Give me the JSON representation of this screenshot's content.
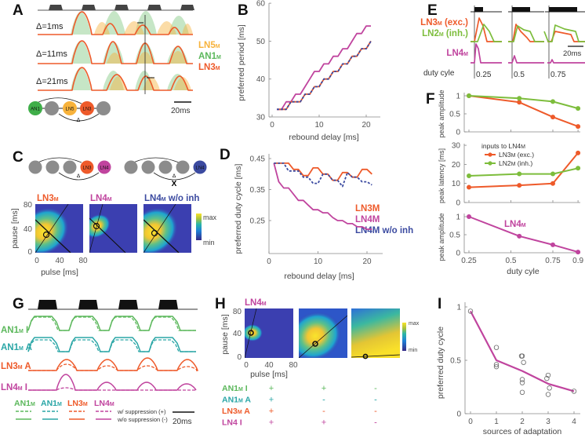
{
  "panel_labels": {
    "A": "A",
    "B": "B",
    "C": "C",
    "D": "D",
    "E": "E",
    "F": "F",
    "G": "G",
    "H": "H",
    "I": "I"
  },
  "colors": {
    "LN5": "#f7b23b",
    "AN1": "#5cb85c",
    "LN3": "#ee5a2a",
    "LN4": "#c0449e",
    "LN4_wo_inh": "#3b4aa0",
    "LN2": "#7dbd3c",
    "AN1_A": "#2aa6a6",
    "gray": "#8c8c8c",
    "stimulus": "#333333"
  },
  "panel_a": {
    "deltas": [
      "Δ=1ms",
      "Δ=11ms",
      "Δ=21ms"
    ],
    "legend": [
      {
        "main": "LN5",
        "sub": "M"
      },
      {
        "main": "AN1",
        "sub": "M"
      },
      {
        "main": "LN3",
        "sub": "M"
      }
    ],
    "scale_bar": "20ms",
    "network": {
      "nodes": [
        "AN1",
        "LN5",
        "LN3"
      ],
      "delta": "Δ"
    }
  },
  "panel_c": {
    "network_left": [
      "LN3",
      "LN4"
    ],
    "network_right": [
      "LN4"
    ],
    "delta": "Δ",
    "cross": "X",
    "titles": [
      {
        "main": "LN3",
        "sub": "M",
        "extra": ""
      },
      {
        "main": "LN4",
        "sub": "M",
        "extra": ""
      },
      {
        "main": "LN4",
        "sub": "M",
        "extra": " w/o inh"
      }
    ],
    "colorbar": {
      "max": "max",
      "min": "min"
    },
    "xticks": [
      "0",
      "40",
      "80"
    ],
    "yticks": [
      "80",
      "40",
      "0"
    ],
    "xlabel": "pulse [ms]",
    "ylabel": "pause [ms]"
  },
  "panel_e": {
    "labels": [
      {
        "main": "LN3",
        "sub": "M",
        "extra": " (exc.)"
      },
      {
        "main": "LN2",
        "sub": "M",
        "extra": " (inh.)"
      },
      {
        "main": "LN4",
        "sub": "M",
        "extra": ""
      }
    ],
    "duty_label": "duty cyle",
    "duty_values": [
      "0.25",
      "0.5",
      "0.75"
    ],
    "scale_bar": "20ms"
  },
  "panel_f": {
    "legend_title": {
      "main": "inputs to LN4",
      "sub": "M"
    },
    "legend": [
      {
        "main": "LN3",
        "sub": "M",
        "extra": " (exc.)"
      },
      {
        "main": "LN2",
        "sub": "M",
        "extra": " (inh.)"
      }
    ],
    "ln4_label": {
      "main": "LN4",
      "sub": "M"
    }
  },
  "panel_g": {
    "traces": [
      {
        "main": "AN1",
        "sub": "M",
        "extra": " I"
      },
      {
        "main": "AN1",
        "sub": "M",
        "extra": " A"
      },
      {
        "main": "LN3",
        "sub": "M",
        "extra": " A"
      },
      {
        "main": "LN4",
        "sub": "M",
        "extra": " I"
      }
    ],
    "legend_cols": [
      {
        "main": "AN1",
        "sub": "M"
      },
      {
        "main": "AN1",
        "sub": "M"
      },
      {
        "main": "LN3",
        "sub": "M"
      },
      {
        "main": "LN4",
        "sub": "M"
      }
    ],
    "legend_dashed": "w/ suppression (+)",
    "legend_solid": "w/o suppression (-)",
    "scale_bar": "20ms"
  },
  "panel_h": {
    "title": {
      "main": "LN4",
      "sub": "M"
    },
    "xticks": [
      "0",
      "40",
      "80"
    ],
    "yticks": [
      "80",
      "40",
      "0"
    ],
    "xlabel": "pulse [ms]",
    "ylabel": "pause [ms]",
    "colorbar": {
      "max": "max",
      "min": "min"
    },
    "rows": [
      {
        "main": "AN1",
        "sub": "M",
        "extra": " I",
        "signs": [
          "+",
          "+",
          "-"
        ]
      },
      {
        "main": "AN1",
        "sub": "M",
        "extra": " A",
        "signs": [
          "+",
          "-",
          "-"
        ]
      },
      {
        "main": "LN3",
        "sub": "M",
        "extra": " A",
        "signs": [
          "+",
          "-",
          "-"
        ]
      },
      {
        "main": "LN4",
        "sub": "",
        "extra": "  I",
        "signs": [
          "+",
          "+",
          "-"
        ]
      }
    ]
  },
  "chart_data": [
    {
      "panel": "B",
      "type": "line",
      "xlabel": "rebound delay [ms]",
      "ylabel": "preferred period [ms]",
      "xlim": [
        0,
        23
      ],
      "ylim": [
        30,
        60
      ],
      "xticks": [
        0,
        10,
        20
      ],
      "yticks": [
        30,
        40,
        50,
        60
      ],
      "x": [
        1,
        2,
        3,
        4,
        5,
        6,
        7,
        8,
        9,
        10,
        11,
        12,
        13,
        14,
        15,
        16,
        17,
        18,
        19,
        20,
        21
      ],
      "series": [
        {
          "color": "#ee5a2a",
          "values": [
            32,
            32,
            32,
            34,
            34,
            34,
            36,
            36,
            38,
            38,
            40,
            40,
            42,
            42,
            44,
            44,
            46,
            46,
            48,
            48,
            50
          ]
        },
        {
          "color": "#3b4aa0",
          "dashed": true,
          "values": [
            32,
            32,
            32,
            34,
            34,
            34,
            36,
            36,
            38,
            38,
            40,
            40,
            42,
            42,
            44,
            44,
            46,
            46,
            48,
            48,
            50
          ]
        },
        {
          "color": "#c0449e",
          "values": [
            32,
            32,
            34,
            34,
            36,
            36,
            38,
            40,
            42,
            42,
            44,
            44,
            46,
            46,
            48,
            48,
            50,
            52,
            52,
            54,
            54
          ]
        }
      ]
    },
    {
      "panel": "D",
      "type": "line",
      "xlabel": "rebound delay [ms]",
      "ylabel": "preferred duty cycle [ms]",
      "xlim": [
        0,
        23
      ],
      "ylim": [
        0.2,
        0.45
      ],
      "xticks": [
        0,
        10,
        20
      ],
      "yticks": [
        0.25,
        0.35,
        0.45
      ],
      "legend": "right",
      "x": [
        1,
        2,
        3,
        4,
        5,
        6,
        7,
        8,
        9,
        10,
        11,
        12,
        13,
        14,
        15,
        16,
        17,
        18,
        19,
        20,
        21
      ],
      "series": [
        {
          "name": "LN3M",
          "color": "#ee5a2a",
          "values": [
            0.435,
            0.435,
            0.435,
            0.435,
            0.415,
            0.415,
            0.395,
            0.395,
            0.42,
            0.42,
            0.4,
            0.4,
            0.38,
            0.38,
            0.405,
            0.405,
            0.39,
            0.39,
            0.415,
            0.415,
            0.4
          ]
        },
        {
          "name": "LN4M",
          "color": "#c0449e",
          "values": [
            0.435,
            0.375,
            0.355,
            0.355,
            0.335,
            0.315,
            0.315,
            0.3,
            0.285,
            0.285,
            0.275,
            0.275,
            0.26,
            0.25,
            0.25,
            0.24,
            0.24,
            0.23,
            0.23,
            0.222,
            0.222
          ]
        },
        {
          "name": "LN4M w/o inh",
          "color": "#3b4aa0",
          "dashed": true,
          "values": [
            0.435,
            0.435,
            0.435,
            0.41,
            0.41,
            0.41,
            0.39,
            0.39,
            0.37,
            0.37,
            0.4,
            0.4,
            0.38,
            0.38,
            0.36,
            0.405,
            0.39,
            0.39,
            0.375,
            0.375,
            0.365
          ]
        }
      ]
    },
    {
      "panel": "F-top",
      "type": "line",
      "ylabel": "peak amplitude",
      "ylim": [
        0,
        1
      ],
      "yticks": [
        0,
        0.5,
        1
      ],
      "x": [
        0.25,
        0.55,
        0.75,
        0.9
      ],
      "series": [
        {
          "name": "LN3M (exc.)",
          "color": "#ee5a2a",
          "values": [
            1,
            0.82,
            0.41,
            0.15
          ]
        },
        {
          "name": "LN2M (inh.)",
          "color": "#7dbd3c",
          "values": [
            1,
            0.93,
            0.84,
            0.65
          ]
        }
      ]
    },
    {
      "panel": "F-middle",
      "type": "line",
      "ylabel": "peak latency [ms]",
      "ylim": [
        0,
        30
      ],
      "yticks": [
        0,
        10,
        20,
        30
      ],
      "legend": "top",
      "x": [
        0.25,
        0.55,
        0.75,
        0.9
      ],
      "series": [
        {
          "name": "LN3M (exc.)",
          "color": "#ee5a2a",
          "values": [
            8,
            9,
            10,
            26
          ]
        },
        {
          "name": "LN2M (inh.)",
          "color": "#7dbd3c",
          "values": [
            14,
            15,
            15,
            18
          ]
        }
      ]
    },
    {
      "panel": "F-bottom",
      "type": "line",
      "xlabel": "duty cyle",
      "ylabel": "peak amplitude",
      "xlim": [
        0.25,
        0.9
      ],
      "xticks": [
        0.25,
        0.5,
        0.75,
        0.9
      ],
      "ylim": [
        0,
        1
      ],
      "yticks": [
        0,
        0.5,
        1
      ],
      "x": [
        0.25,
        0.55,
        0.75,
        0.9
      ],
      "series": [
        {
          "name": "LN4M",
          "color": "#c0449e",
          "values": [
            1,
            0.46,
            0.22,
            0.02
          ]
        }
      ]
    },
    {
      "panel": "I",
      "type": "scatter",
      "xlabel": "sources of adaptation",
      "ylabel": "preferred duty cycle",
      "xlim": [
        -0.2,
        4.2
      ],
      "xticks": [
        0,
        1,
        2,
        3,
        4
      ],
      "ylim": [
        0,
        1
      ],
      "yticks": [
        0,
        0.5,
        1
      ],
      "points": [
        [
          0,
          0.96
        ],
        [
          1,
          0.62
        ],
        [
          1,
          0.46
        ],
        [
          1,
          0.44
        ],
        [
          1.97,
          0.54
        ],
        [
          2.0,
          0.54
        ],
        [
          2.05,
          0.48
        ],
        [
          2,
          0.32
        ],
        [
          2,
          0.29
        ],
        [
          2,
          0.2
        ],
        [
          3,
          0.36
        ],
        [
          2.95,
          0.33
        ],
        [
          3.05,
          0.24
        ],
        [
          3,
          0.18
        ],
        [
          4,
          0.21
        ]
      ],
      "mean_line": {
        "color": "#c0449e",
        "x": [
          0,
          1,
          2,
          3,
          4
        ],
        "values": [
          0.96,
          0.5,
          0.4,
          0.28,
          0.21
        ]
      }
    }
  ]
}
